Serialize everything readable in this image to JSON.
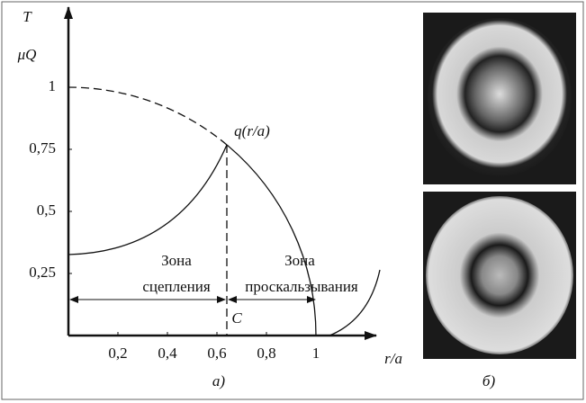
{
  "plot": {
    "y_label_top": "T",
    "y_label": "μQ",
    "x_label": "r/a",
    "point_label": "q(r/a)",
    "boundary_label": "C",
    "xticks": [
      {
        "value": 0.2,
        "label": "0,2"
      },
      {
        "value": 0.4,
        "label": "0,4"
      },
      {
        "value": 0.6,
        "label": "0,6"
      },
      {
        "value": 0.8,
        "label": "0,8"
      },
      1
    ],
    "yticks": [
      {
        "value": 0.25,
        "label": "0,25"
      },
      {
        "value": 0.5,
        "label": "0,5"
      },
      {
        "value": 0.75,
        "label": "0,75"
      },
      1
    ],
    "zones": [
      {
        "line1": "Зона",
        "line2": "сцепления"
      },
      {
        "line1": "Зона",
        "line2": "проскальзывания"
      }
    ]
  },
  "captions": {
    "left": "а)",
    "right": "б)"
  }
}
